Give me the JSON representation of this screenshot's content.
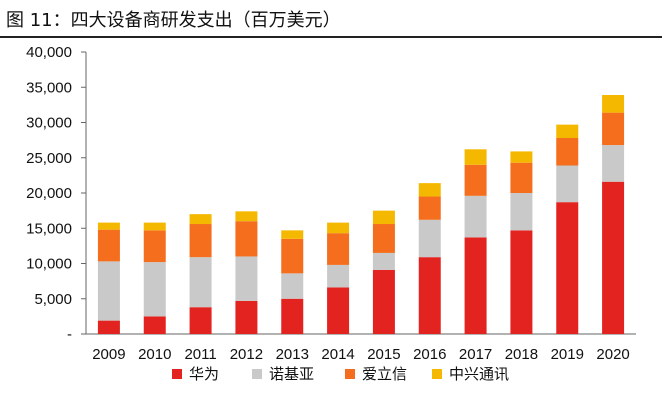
{
  "header": {
    "title": "图 11：四大设备商研发支出（百万美元）"
  },
  "chart_data": {
    "type": "bar",
    "stacked": true,
    "title": "图 11：四大设备商研发支出（百万美元）",
    "xlabel": "",
    "ylabel": "",
    "categories": [
      "2009",
      "2010",
      "2011",
      "2012",
      "2013",
      "2014",
      "2015",
      "2016",
      "2017",
      "2018",
      "2019",
      "2020"
    ],
    "ylim": [
      0,
      40000
    ],
    "yticks": [
      0,
      5000,
      10000,
      15000,
      20000,
      25000,
      30000,
      35000,
      40000
    ],
    "ytick_labels": [
      "-",
      "5,000",
      "10,000",
      "15,000",
      "20,000",
      "25,000",
      "30,000",
      "35,000",
      "40,000"
    ],
    "grid": false,
    "legend_position": "bottom",
    "series": [
      {
        "name": "华为",
        "color": "#e32320",
        "values": [
          1900,
          2500,
          3800,
          4700,
          5000,
          6600,
          9100,
          10900,
          13700,
          14700,
          18700,
          21600
        ]
      },
      {
        "name": "诺基亚",
        "color": "#c9c9c9",
        "values": [
          8400,
          7700,
          7100,
          6300,
          3600,
          3200,
          2400,
          5300,
          5900,
          5300,
          5200,
          5200
        ]
      },
      {
        "name": "爱立信",
        "color": "#f46e1e",
        "values": [
          4500,
          4500,
          4700,
          5000,
          4900,
          4500,
          4100,
          3300,
          4400,
          4300,
          3900,
          4600
        ]
      },
      {
        "name": "中兴通讯",
        "color": "#f5b800",
        "values": [
          1000,
          1100,
          1400,
          1400,
          1200,
          1500,
          1900,
          1900,
          2200,
          1600,
          1900,
          2500
        ]
      }
    ]
  }
}
